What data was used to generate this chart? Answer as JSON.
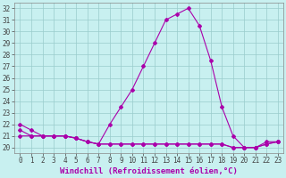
{
  "xlabel": "Windchill (Refroidissement éolien,°C)",
  "x_values": [
    0,
    1,
    2,
    3,
    4,
    5,
    6,
    7,
    8,
    9,
    10,
    11,
    12,
    13,
    14,
    15,
    16,
    17,
    18,
    19,
    20,
    21,
    22,
    23
  ],
  "line1": [
    22.0,
    21.5,
    21.0,
    21.0,
    21.0,
    20.8,
    20.5,
    20.3,
    22.0,
    23.5,
    25.0,
    27.0,
    29.0,
    31.0,
    31.5,
    32.0,
    30.5,
    27.5,
    23.5,
    21.0,
    20.0,
    20.0,
    20.5,
    20.5
  ],
  "line2": [
    21.5,
    21.0,
    21.0,
    21.0,
    21.0,
    20.8,
    20.5,
    20.3,
    20.3,
    20.3,
    20.3,
    20.3,
    20.3,
    20.3,
    20.3,
    20.3,
    20.3,
    20.3,
    20.3,
    20.0,
    20.0,
    20.0,
    20.3,
    20.5
  ],
  "line3": [
    21.0,
    21.0,
    21.0,
    21.0,
    21.0,
    20.8,
    20.5,
    20.3,
    20.3,
    20.3,
    20.3,
    20.3,
    20.3,
    20.3,
    20.3,
    20.3,
    20.3,
    20.3,
    20.3,
    20.0,
    20.0,
    20.0,
    20.3,
    20.5
  ],
  "line_color": "#aa00aa",
  "bg_color": "#c8f0f0",
  "grid_color": "#99cccc",
  "ylim": [
    19.5,
    32.5
  ],
  "xlim": [
    -0.5,
    23.5
  ],
  "yticks": [
    20,
    21,
    22,
    23,
    24,
    25,
    26,
    27,
    28,
    29,
    30,
    31,
    32
  ],
  "xticks": [
    0,
    1,
    2,
    3,
    4,
    5,
    6,
    7,
    8,
    9,
    10,
    11,
    12,
    13,
    14,
    15,
    16,
    17,
    18,
    19,
    20,
    21,
    22,
    23
  ],
  "marker": "D",
  "markersize": 2.0,
  "linewidth": 0.8,
  "tick_fontsize": 5.5,
  "label_fontsize": 6.5
}
